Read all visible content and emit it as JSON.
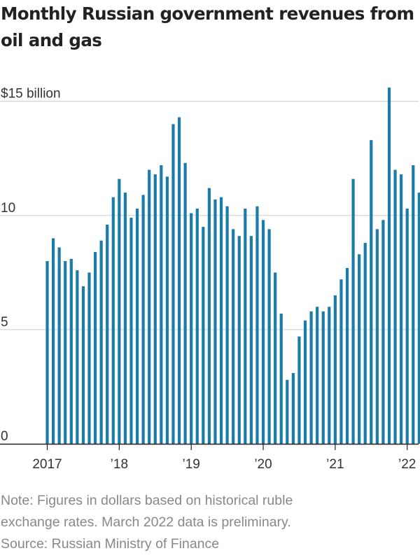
{
  "chart_data": {
    "type": "bar",
    "title": "Monthly Russian government revenues from oil and gas",
    "unit_label": "$15 billion",
    "xlabel": "",
    "ylabel": "",
    "ylim": [
      0,
      15.5
    ],
    "y_ticks": [
      {
        "value": 15,
        "label": "$15 billion"
      },
      {
        "value": 10,
        "label": "10"
      },
      {
        "value": 5,
        "label": "5"
      },
      {
        "value": 0,
        "label": "0"
      }
    ],
    "x_ticks": [
      {
        "label": "2017",
        "index": 0
      },
      {
        "label": "’18",
        "index": 12
      },
      {
        "label": "’19",
        "index": 24
      },
      {
        "label": "’20",
        "index": 36
      },
      {
        "label": "’21",
        "index": 48
      },
      {
        "label": "’22",
        "index": 60
      }
    ],
    "start_month": "2017-01",
    "end_month": "2022-03",
    "series": [
      {
        "name": "Oil and gas revenues ($ billion)",
        "values": [
          8.0,
          9.0,
          8.6,
          8.0,
          8.1,
          7.6,
          6.9,
          7.5,
          8.4,
          8.9,
          9.6,
          10.8,
          11.6,
          11.0,
          9.9,
          10.3,
          10.9,
          12.0,
          11.8,
          12.2,
          11.7,
          14.0,
          14.3,
          12.3,
          10.1,
          10.3,
          9.5,
          11.2,
          10.7,
          10.8,
          10.4,
          9.4,
          9.1,
          10.3,
          9.1,
          10.4,
          9.8,
          9.4,
          7.5,
          5.7,
          2.8,
          3.1,
          4.7,
          5.4,
          5.8,
          6.0,
          5.8,
          6.0,
          6.5,
          7.2,
          7.7,
          11.6,
          8.3,
          8.8,
          13.3,
          9.4,
          9.8,
          15.6,
          12.0,
          11.8,
          10.3,
          12.2,
          11.0
        ]
      }
    ],
    "colors": {
      "bar": "#1a7ca8",
      "gridline": "#cccccc",
      "axis": "#222222"
    }
  },
  "notes": {
    "line1": "Note: Figures in dollars based on historical ruble",
    "line2": "exchange rates. March 2022 data is preliminary.",
    "source": "Source: Russian Ministry of Finance"
  }
}
